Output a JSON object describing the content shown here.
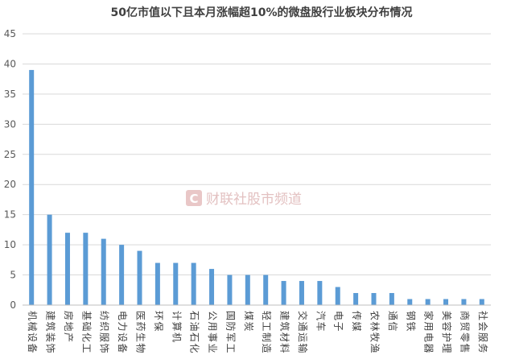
{
  "watermark": {
    "text": "财联社股市频道",
    "logo_letter": "C"
  },
  "chart_data": {
    "type": "bar",
    "title": "50亿市值以下且本月涨幅超10%的微盘股行业板块分布情况",
    "xlabel": "",
    "ylabel": "",
    "ylim": [
      0,
      45
    ],
    "yticks": [
      0,
      5,
      10,
      15,
      20,
      25,
      30,
      35,
      40,
      45
    ],
    "grid": true,
    "legend": "none",
    "bar_color": "#5b9bd5",
    "categories": [
      "机械设备",
      "建筑装饰",
      "房地产",
      "基础化工",
      "纺织服饰",
      "电力设备",
      "医药生物",
      "环保",
      "计算机",
      "石油石化",
      "公用事业",
      "国防军工",
      "煤炭",
      "轻工制造",
      "建筑材料",
      "交通运输",
      "汽车",
      "电子",
      "传媒",
      "农林牧渔",
      "通信",
      "钢铁",
      "家用电器",
      "美容护理",
      "商贸零售",
      "社会服务"
    ],
    "values": [
      39,
      15,
      12,
      12,
      11,
      10,
      9,
      7,
      7,
      7,
      6,
      5,
      5,
      5,
      4,
      4,
      4,
      3,
      2,
      2,
      2,
      1,
      1,
      1,
      1,
      1
    ]
  }
}
